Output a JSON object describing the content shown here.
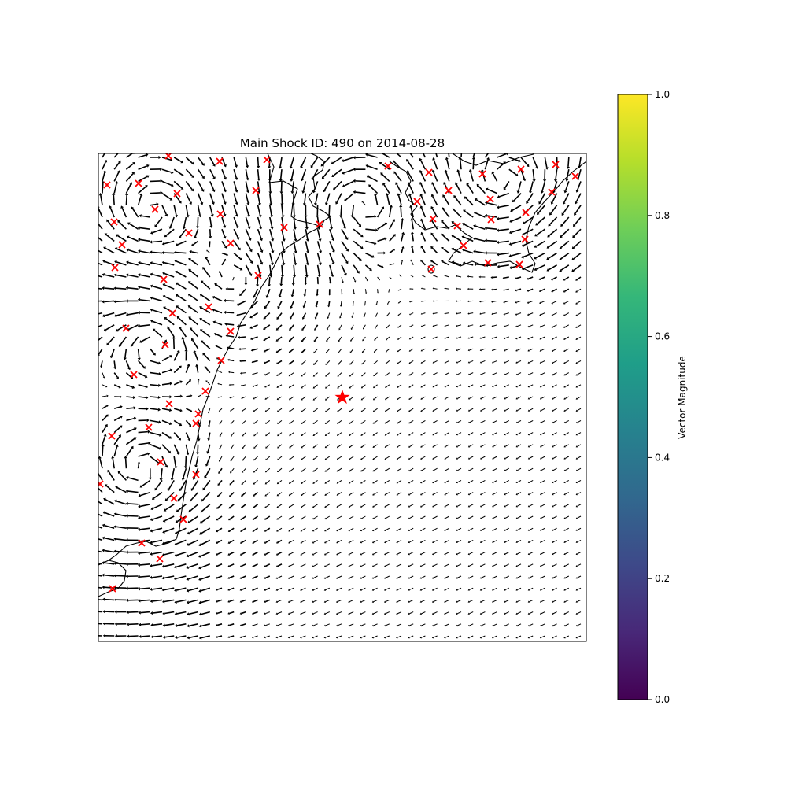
{
  "title": "Main Shock ID: 490 on 2014-08-28",
  "colorbar": {
    "label": "Vector Magnitude",
    "colormap": "viridis",
    "range": [
      0.0,
      1.0
    ],
    "ticks": [
      "0.0",
      "0.2",
      "0.4",
      "0.6",
      "0.8",
      "1.0"
    ],
    "stops": [
      "#440154",
      "#482878",
      "#3e4989",
      "#31688e",
      "#26828e",
      "#1f9e89",
      "#35b779",
      "#6ece58",
      "#b5de2b",
      "#fde725"
    ]
  },
  "map": {
    "coastline_color": "#000000",
    "vector_color": "#000000",
    "main_shock": {
      "marker": "star",
      "color": "#ff0000"
    },
    "stations": {
      "marker": "x",
      "color": "#ff0000"
    }
  }
}
